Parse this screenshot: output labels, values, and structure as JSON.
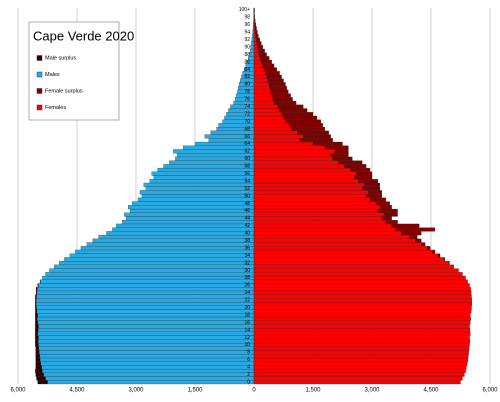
{
  "chart_data": {
    "type": "pyramid",
    "title": "Cape Verde 2020",
    "categories": [
      "0",
      null,
      "2",
      null,
      "4",
      null,
      "6",
      null,
      "8",
      null,
      "10",
      null,
      "12",
      null,
      "14",
      null,
      "16",
      null,
      "18",
      null,
      "20",
      null,
      "22",
      null,
      "24",
      null,
      "26",
      null,
      "28",
      null,
      "30",
      null,
      "32",
      null,
      "34",
      null,
      "36",
      null,
      "38",
      null,
      "40",
      null,
      "42",
      null,
      "44",
      null,
      "46",
      null,
      "48",
      null,
      "50",
      null,
      "52",
      null,
      "54",
      null,
      "56",
      null,
      "58",
      null,
      "60",
      null,
      "62",
      null,
      "64",
      null,
      "66",
      null,
      "68",
      null,
      "70",
      null,
      "72",
      null,
      "74",
      null,
      "76",
      null,
      "78",
      null,
      "80",
      null,
      "82",
      null,
      "84",
      null,
      "86",
      null,
      "88",
      null,
      "90",
      null,
      "92",
      null,
      "94",
      null,
      "96",
      null,
      "98",
      null,
      "100+"
    ],
    "series": [
      {
        "name": "Male surplus",
        "color": "#2b0000",
        "side": "left",
        "values": [
          250,
          230,
          200,
          180,
          150,
          130,
          110,
          100,
          90,
          80,
          80,
          70,
          80,
          60,
          70,
          80,
          60,
          50,
          60,
          40,
          30,
          20,
          20,
          30,
          20,
          30,
          20,
          10,
          0,
          0,
          0,
          0,
          0,
          0,
          0,
          0,
          0,
          0,
          0,
          0,
          0,
          0,
          0,
          0,
          0,
          0,
          0,
          0,
          0,
          0,
          0,
          0,
          0,
          0,
          0,
          0,
          0,
          0,
          0,
          0,
          0,
          0,
          0,
          0,
          0,
          0,
          0,
          0,
          0,
          0,
          0,
          0,
          0,
          0,
          0,
          0,
          0,
          0,
          0,
          0,
          0,
          0,
          0,
          0,
          0,
          0,
          0,
          0,
          0,
          0,
          0,
          0,
          0,
          0,
          0,
          0,
          0,
          0,
          0,
          0,
          0
        ]
      },
      {
        "name": "Males",
        "color": "#29a9e1",
        "side": "left",
        "values": [
          5250,
          5300,
          5350,
          5380,
          5400,
          5420,
          5440,
          5450,
          5460,
          5470,
          5480,
          5490,
          5480,
          5500,
          5490,
          5480,
          5500,
          5510,
          5500,
          5520,
          5530,
          5540,
          5540,
          5530,
          5520,
          5510,
          5480,
          5430,
          5380,
          5300,
          5200,
          5080,
          4950,
          4820,
          4680,
          4540,
          4400,
          4250,
          4100,
          3950,
          3750,
          3600,
          3500,
          3350,
          3250,
          3300,
          3150,
          3200,
          3100,
          2950,
          2850,
          2900,
          2750,
          2800,
          2650,
          2550,
          2600,
          2450,
          2300,
          2150,
          2000,
          1950,
          2050,
          1800,
          1500,
          1150,
          1250,
          1100,
          950,
          900,
          800,
          750,
          700,
          650,
          600,
          520,
          480,
          450,
          420,
          400,
          380,
          350,
          320,
          290,
          250,
          210,
          180,
          150,
          120,
          100,
          85,
          70,
          55,
          42,
          32,
          25,
          18,
          12,
          8,
          5,
          6
        ]
      },
      {
        "name": "Female surplus",
        "color": "#800000",
        "side": "right",
        "values": [
          0,
          0,
          0,
          0,
          0,
          0,
          0,
          0,
          0,
          0,
          0,
          0,
          0,
          0,
          0,
          0,
          0,
          0,
          0,
          0,
          0,
          0,
          0,
          0,
          0,
          0,
          0,
          0,
          0,
          0,
          0,
          0,
          20,
          30,
          50,
          60,
          80,
          100,
          150,
          200,
          500,
          1000,
          700,
          300,
          250,
          350,
          500,
          300,
          350,
          400,
          400,
          350,
          450,
          400,
          500,
          450,
          400,
          500,
          550,
          600,
          500,
          450,
          350,
          600,
          750,
          850,
          700,
          800,
          850,
          850,
          900,
          850,
          800,
          700,
          650,
          550,
          500,
          480,
          450,
          430,
          420,
          400,
          380,
          360,
          330,
          300,
          270,
          240,
          200,
          170,
          140,
          115,
          90,
          70,
          55,
          40,
          30,
          20,
          14,
          9,
          10
        ]
      },
      {
        "name": "Females",
        "color": "#ff0000",
        "side": "right",
        "values": [
          5250,
          5300,
          5350,
          5380,
          5400,
          5420,
          5440,
          5450,
          5460,
          5470,
          5480,
          5490,
          5480,
          5500,
          5490,
          5480,
          5500,
          5510,
          5500,
          5520,
          5530,
          5540,
          5540,
          5530,
          5520,
          5510,
          5480,
          5430,
          5380,
          5300,
          5200,
          5080,
          4950,
          4820,
          4680,
          4540,
          4400,
          4250,
          4100,
          3950,
          3750,
          3600,
          3500,
          3350,
          3250,
          3300,
          3150,
          3200,
          3100,
          2950,
          2850,
          2900,
          2750,
          2800,
          2650,
          2550,
          2600,
          2450,
          2300,
          2150,
          2000,
          1950,
          2050,
          1800,
          1500,
          1150,
          1250,
          1100,
          950,
          900,
          800,
          750,
          700,
          650,
          600,
          520,
          480,
          450,
          420,
          400,
          380,
          350,
          320,
          290,
          250,
          210,
          180,
          150,
          120,
          100,
          85,
          70,
          55,
          42,
          32,
          25,
          18,
          12,
          8,
          5,
          6
        ]
      }
    ],
    "xlim": [
      0,
      6000
    ],
    "xticks": [
      0,
      {
        "value": 1500,
        "label": "1,500"
      },
      {
        "value": 3000,
        "label": "3,000"
      },
      {
        "value": 4500,
        "label": "4,500"
      },
      {
        "value": 6000,
        "label": "6,000"
      }
    ],
    "grid": true
  }
}
